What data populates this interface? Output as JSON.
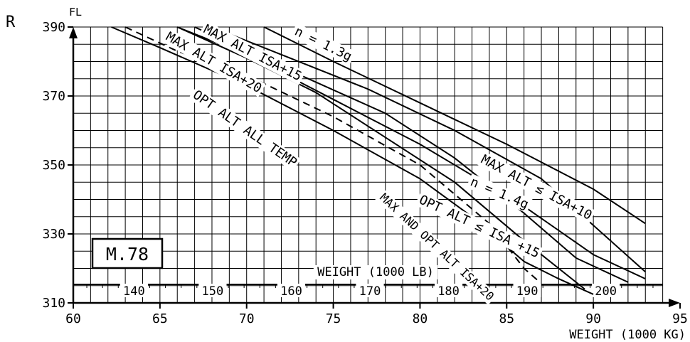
{
  "corner_label": "R",
  "box_label": "M.78",
  "chart_data": {
    "type": "line",
    "x_axis": {
      "label": "WEIGHT (1000 KG)",
      "range": [
        60,
        95
      ],
      "ticks": [
        "60",
        "65",
        "70",
        "75",
        "80",
        "85",
        "90",
        "95"
      ]
    },
    "y_axis": {
      "label": "FL",
      "range": [
        310,
        390
      ],
      "ticks": [
        "310",
        "330",
        "350",
        "370",
        "390"
      ]
    },
    "lb_scale": {
      "label": "WEIGHT (1000 LB)",
      "ticks": [
        "140",
        "150",
        "160",
        "170",
        "180",
        "190",
        "200"
      ],
      "values_lb": [
        140,
        150,
        160,
        170,
        180,
        190,
        200
      ]
    },
    "grid": true,
    "series": [
      {
        "name": "n = 1.3g",
        "style": "solid",
        "points": [
          [
            71,
            390
          ],
          [
            75,
            380
          ],
          [
            80,
            368
          ],
          [
            85,
            356
          ],
          [
            90,
            343
          ],
          [
            93,
            333
          ]
        ]
      },
      {
        "name": "MAX ALT ≤ ISA+10",
        "style": "solid",
        "points": [
          [
            68,
            390
          ],
          [
            72,
            382
          ],
          [
            77,
            372
          ],
          [
            82,
            360
          ],
          [
            87,
            346
          ],
          [
            93,
            319
          ]
        ]
      },
      {
        "name": "MAX ALT ISA+15",
        "style": "solid",
        "points": [
          [
            66,
            390
          ],
          [
            70,
            382
          ],
          [
            75,
            369
          ],
          [
            80,
            356
          ],
          [
            86,
            338
          ],
          [
            90,
            324
          ],
          [
            93,
            317
          ]
        ]
      },
      {
        "name": "n = 1.4g",
        "style": "solid",
        "points": [
          [
            67,
            390
          ],
          [
            70,
            383
          ],
          [
            74,
            374
          ],
          [
            78,
            365
          ],
          [
            82,
            352
          ],
          [
            86,
            336
          ],
          [
            89,
            323
          ],
          [
            92,
            316
          ]
        ]
      },
      {
        "name": "OPT ALT ≤ ISA +15",
        "style": "solid",
        "points": [
          [
            66,
            390
          ],
          [
            70,
            381
          ],
          [
            74,
            371
          ],
          [
            78,
            358
          ],
          [
            82,
            345
          ],
          [
            86,
            328
          ],
          [
            89.5,
            314
          ]
        ]
      },
      {
        "name": "MAX ALT ISA+20",
        "style": "dashed",
        "points": [
          [
            63,
            390
          ],
          [
            66,
            383
          ],
          [
            70,
            376
          ],
          [
            75,
            364
          ],
          [
            80,
            350
          ],
          [
            84,
            333
          ],
          [
            86,
            320
          ],
          [
            86.8,
            316.5
          ]
        ]
      },
      {
        "name": "OPT ALT ALL TEMP",
        "style": "solid",
        "points": [
          [
            62.2,
            390
          ],
          [
            65,
            384
          ],
          [
            70,
            373
          ],
          [
            75,
            360
          ],
          [
            80,
            346
          ],
          [
            83,
            335
          ],
          [
            86,
            322
          ],
          [
            88,
            317
          ],
          [
            90,
            312.5
          ]
        ]
      }
    ],
    "annotations": [
      "n = 1.3g",
      "MAX ALT ISA+15",
      "MAX ALT ISA+20",
      "OPT ALT ALL TEMP",
      "MAX ALT ≤ ISA+10",
      "n = 1.4g",
      "OPT ALT ≤ ISA +15",
      "MAX AND OPT ALT ISA+20"
    ]
  }
}
